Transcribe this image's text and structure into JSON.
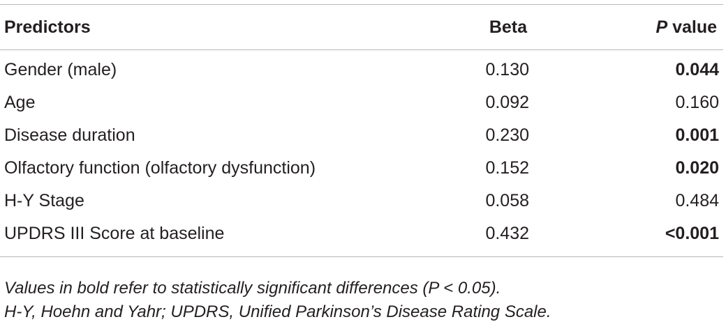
{
  "table": {
    "headers": {
      "predictors": "Predictors",
      "beta": "Beta",
      "p_italic": "P",
      "p_rest": " value"
    },
    "rows": [
      {
        "predictor": "Gender (male)",
        "beta": "0.130",
        "p": "0.044",
        "significant": true
      },
      {
        "predictor": "Age",
        "beta": "0.092",
        "p": "0.160",
        "significant": false
      },
      {
        "predictor": "Disease duration",
        "beta": "0.230",
        "p": "0.001",
        "significant": true
      },
      {
        "predictor": "Olfactory function (olfactory dysfunction)",
        "beta": "0.152",
        "p": "0.020",
        "significant": true
      },
      {
        "predictor": "H-Y Stage",
        "beta": "0.058",
        "p": "0.484",
        "significant": false
      },
      {
        "predictor": "UPDRS III Score at baseline",
        "beta": "0.432",
        "p": "<0.001",
        "significant": true
      }
    ]
  },
  "footnotes": {
    "line1": "Values in bold refer to statistically significant differences (P < 0.05).",
    "line2": "H-Y, Hoehn and Yahr; UPDRS, Unified Parkinson’s Disease Rating Scale."
  }
}
